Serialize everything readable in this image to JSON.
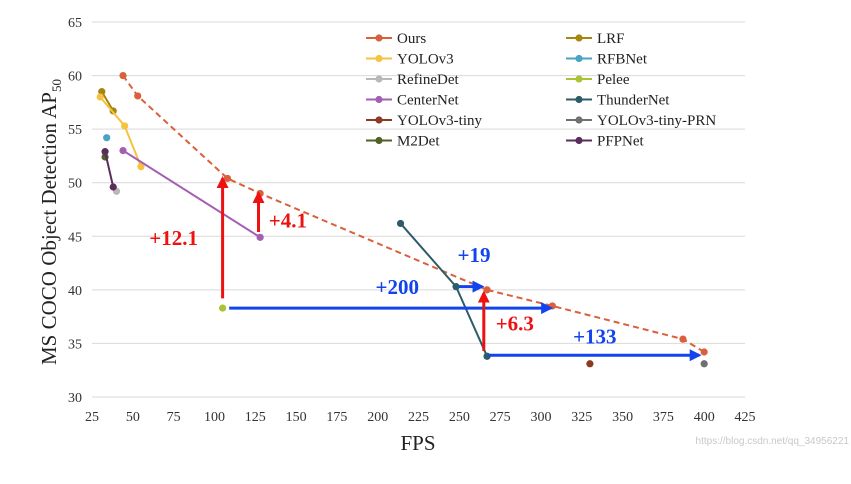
{
  "chart_data": {
    "type": "line",
    "xlabel": "FPS",
    "ylabel_main": "MS COCO Object Detection AP",
    "ylabel_sub": "50",
    "xlim": [
      25,
      425
    ],
    "ylim": [
      30,
      65
    ],
    "x_ticks": [
      25,
      50,
      75,
      100,
      125,
      150,
      175,
      200,
      225,
      250,
      275,
      300,
      325,
      350,
      375,
      400,
      425
    ],
    "y_ticks": [
      30,
      35,
      40,
      45,
      50,
      55,
      60,
      65
    ],
    "grid": "horizontal",
    "legend_placement": "top-right",
    "series": [
      {
        "name": "Ours",
        "color": "#d9603b",
        "style": "dashed",
        "x": [
          44,
          53,
          108,
          128,
          267,
          307,
          387,
          400
        ],
        "y": [
          60.0,
          58.1,
          50.4,
          49.0,
          40.0,
          38.5,
          35.4,
          34.2
        ]
      },
      {
        "name": "LRF",
        "color": "#a6860e",
        "style": "solid",
        "x": [
          31,
          38
        ],
        "y": [
          58.5,
          56.7
        ]
      },
      {
        "name": "YOLOv3",
        "color": "#f5c242",
        "style": "solid",
        "x": [
          30,
          45,
          55
        ],
        "y": [
          58.0,
          55.3,
          51.5
        ]
      },
      {
        "name": "RFBNet",
        "color": "#4aa3c2",
        "style": "solid",
        "x": [
          34
        ],
        "y": [
          54.2
        ]
      },
      {
        "name": "RefineDet",
        "color": "#b8b8b8",
        "style": "solid",
        "x": [
          40
        ],
        "y": [
          49.2
        ]
      },
      {
        "name": "Pelee",
        "color": "#a8c435",
        "style": "solid",
        "x": [
          105
        ],
        "y": [
          38.3
        ]
      },
      {
        "name": "CenterNet",
        "color": "#a45fb3",
        "style": "solid",
        "x": [
          44,
          128
        ],
        "y": [
          53.0,
          44.9
        ]
      },
      {
        "name": "ThunderNet",
        "color": "#2c5c68",
        "style": "solid",
        "x": [
          214,
          248,
          267
        ],
        "y": [
          46.2,
          40.3,
          33.8
        ]
      },
      {
        "name": "YOLOv3-tiny",
        "color": "#8b3a24",
        "style": "solid",
        "x": [
          330
        ],
        "y": [
          33.1
        ]
      },
      {
        "name": "YOLOv3-tiny-PRN",
        "color": "#707070",
        "style": "solid",
        "x": [
          400
        ],
        "y": [
          33.1
        ]
      },
      {
        "name": "M2Det",
        "color": "#4f6227",
        "style": "solid",
        "x": [
          33
        ],
        "y": [
          52.4
        ]
      },
      {
        "name": "PFPNet",
        "color": "#5b2d5c",
        "style": "solid",
        "x": [
          33,
          38
        ],
        "y": [
          52.9,
          49.6
        ]
      }
    ],
    "annotations": [
      {
        "text": "+12.1",
        "color": "#ee1111",
        "x1": 105,
        "y1": 39.2,
        "x2": 105,
        "y2": 50.4,
        "lx": 75,
        "ly": 44.2
      },
      {
        "text": "+4.1",
        "color": "#ee1111",
        "x1": 127,
        "y1": 45.4,
        "x2": 127,
        "y2": 49.0,
        "lx": 145,
        "ly": 45.8
      },
      {
        "text": "+200",
        "color": "#1144ee",
        "x1": 109,
        "y1": 38.3,
        "x2": 306,
        "y2": 38.3,
        "lx": 212,
        "ly": 39.6
      },
      {
        "text": "+19",
        "color": "#1144ee",
        "x1": 250,
        "y1": 40.3,
        "x2": 264,
        "y2": 40.3,
        "lx": 259,
        "ly": 42.6
      },
      {
        "text": "+6.3",
        "color": "#ee1111",
        "x1": 265,
        "y1": 34.3,
        "x2": 265,
        "y2": 39.7,
        "lx": 284,
        "ly": 36.2
      },
      {
        "text": "+133",
        "color": "#1144ee",
        "x1": 268,
        "y1": 33.9,
        "x2": 397,
        "y2": 33.9,
        "lx": 333,
        "ly": 35.0
      }
    ]
  },
  "watermark": "https://blog.csdn.net/qq_34956221"
}
